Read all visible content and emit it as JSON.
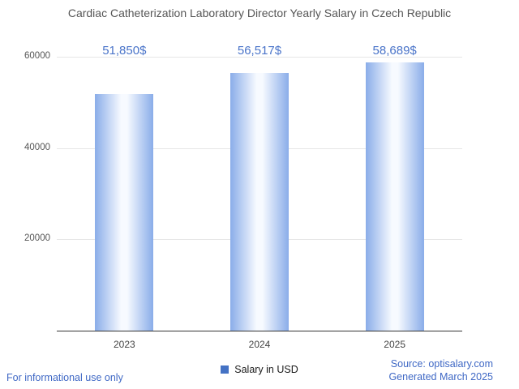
{
  "chart_data": {
    "type": "bar",
    "title": "Cardiac Catheterization Laboratory Director Yearly Salary in Czech Republic",
    "categories": [
      "2023",
      "2024",
      "2025"
    ],
    "values": [
      51850,
      56517,
      58689
    ],
    "value_labels": [
      "51,850$",
      "56,517$",
      "58,689$"
    ],
    "xlabel": "",
    "ylabel": "",
    "ylim": [
      0,
      60000
    ],
    "yticks": [
      20000,
      40000,
      60000
    ],
    "grid": "horizontal",
    "legend": "Salary in USD",
    "legend_position": "bottom"
  },
  "footer": {
    "left": "For informational use only",
    "source": "Source: optisalary.com",
    "generated": "Generated March 2025"
  },
  "colors": {
    "accent": "#4472c4",
    "bar_edge": "#8aade9",
    "bar_center": "#f7faff",
    "value_label_blue": "#4a74c9",
    "footer_blue": "#3f68c5",
    "title_gray": "#565656",
    "gridline": "#e6e6e6",
    "baseline": "#333333"
  }
}
